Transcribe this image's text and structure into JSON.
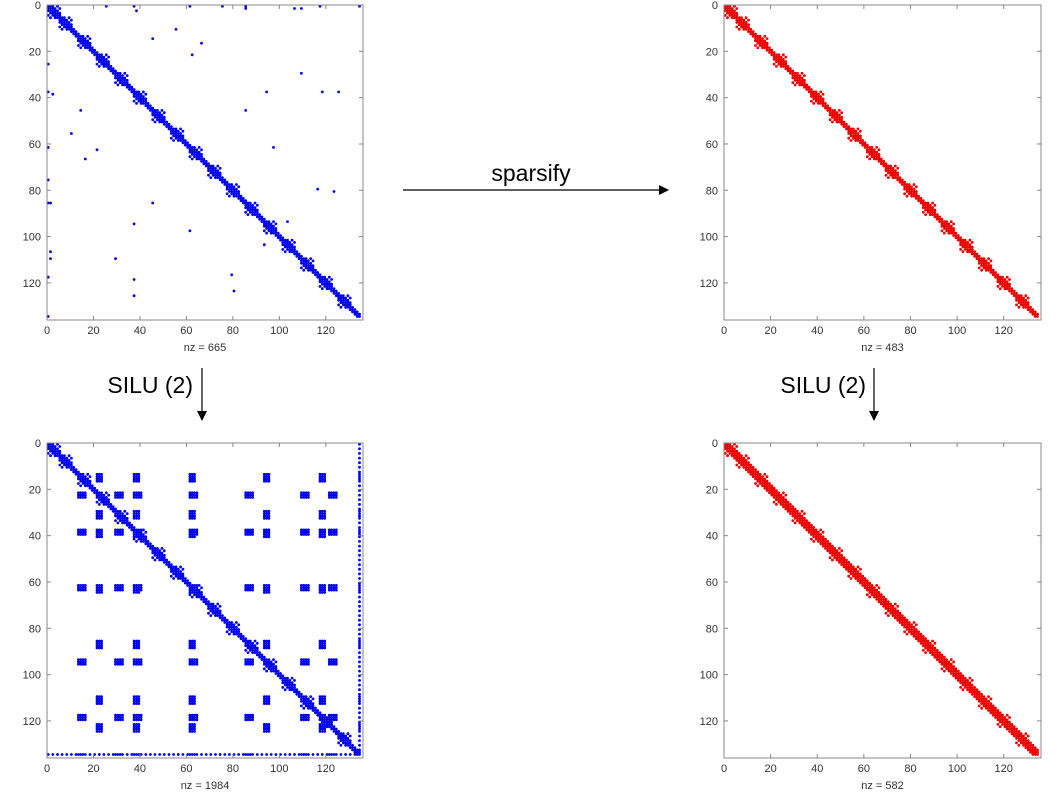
{
  "colors": {
    "blue": "#0000ee",
    "red": "#ee0000",
    "axis": "#888888"
  },
  "plots": [
    {
      "id": "original",
      "color": "blue",
      "nz_label": "nz = 665",
      "pattern": "base-offdiag",
      "x_ticks": [
        "0",
        "20",
        "40",
        "60",
        "80",
        "100",
        "120"
      ],
      "y_ticks": [
        "0",
        "20",
        "40",
        "60",
        "80",
        "100",
        "120"
      ]
    },
    {
      "id": "sparsified",
      "color": "red",
      "nz_label": "nz = 483",
      "pattern": "base",
      "x_ticks": [
        "0",
        "20",
        "40",
        "60",
        "80",
        "100",
        "120"
      ],
      "y_ticks": [
        "0",
        "20",
        "40",
        "60",
        "80",
        "100",
        "120"
      ]
    },
    {
      "id": "original-silu",
      "color": "blue",
      "nz_label": "nz = 1984",
      "pattern": "base-grid",
      "x_ticks": [
        "0",
        "20",
        "40",
        "60",
        "80",
        "100",
        "120"
      ],
      "y_ticks": [
        "0",
        "20",
        "40",
        "60",
        "80",
        "100",
        "120"
      ]
    },
    {
      "id": "sparsified-silu",
      "color": "red",
      "nz_label": "nz = 582",
      "pattern": "base-band",
      "x_ticks": [
        "0",
        "20",
        "40",
        "60",
        "80",
        "100",
        "120"
      ],
      "y_ticks": [
        "0",
        "20",
        "40",
        "60",
        "80",
        "100",
        "120"
      ]
    }
  ],
  "matrix": {
    "size": 135,
    "axis_max": 136,
    "block_starts": [
      0,
      5,
      13,
      21,
      29,
      37,
      45,
      53,
      61,
      69,
      77,
      85,
      93,
      101,
      109,
      117,
      125
    ],
    "block_size": 6,
    "grid_columns": [
      21,
      37,
      61,
      93,
      117,
      134
    ],
    "grid_rows": [
      13,
      29,
      37,
      61,
      85,
      109,
      121
    ]
  },
  "arrows": {
    "sparsify_label": "sparsify",
    "silu_left_label": "SILU (2)",
    "silu_right_label": "SILU (2)"
  }
}
